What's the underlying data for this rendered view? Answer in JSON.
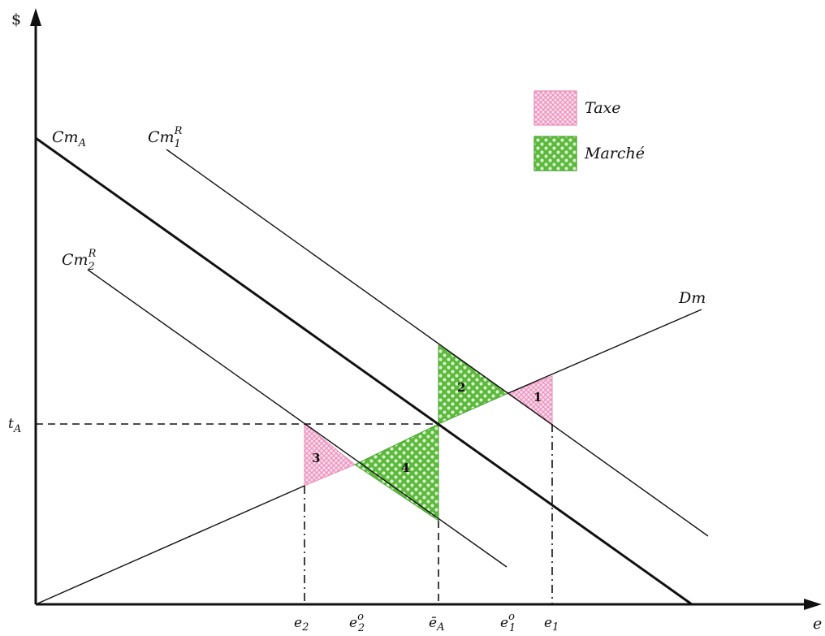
{
  "axes": {
    "y_label": "$",
    "x_label": "e"
  },
  "curves": {
    "cm_a": {
      "base": "Cm",
      "sub": "A"
    },
    "cm1r": {
      "base": "Cm",
      "sub": "1",
      "sup": "R"
    },
    "cm2r": {
      "base": "Cm",
      "sub": "2",
      "sup": "R"
    },
    "dm": {
      "base": "Dm"
    }
  },
  "ticks": {
    "t_a": {
      "base": "t",
      "sub": "A"
    },
    "e2": {
      "base": "e",
      "sub": "2"
    },
    "e2o": {
      "base": "e",
      "sub": "2",
      "sup": "o"
    },
    "ea": {
      "base": "ē",
      "sub": "A"
    },
    "e1o": {
      "base": "e",
      "sub": "1",
      "sup": "o"
    },
    "e1": {
      "base": "e",
      "sub": "1"
    }
  },
  "regions": [
    "1",
    "2",
    "3",
    "4"
  ],
  "legend": {
    "taxe": "Taxe",
    "marche": "Marché"
  },
  "colors": {
    "taxe_fill": "#f4b6d2",
    "taxe_stroke": "#e06fa5",
    "marche_fill": "#69c447",
    "marche_stroke": "#3f9a2a",
    "marche_dot": "#d9f2cf"
  }
}
